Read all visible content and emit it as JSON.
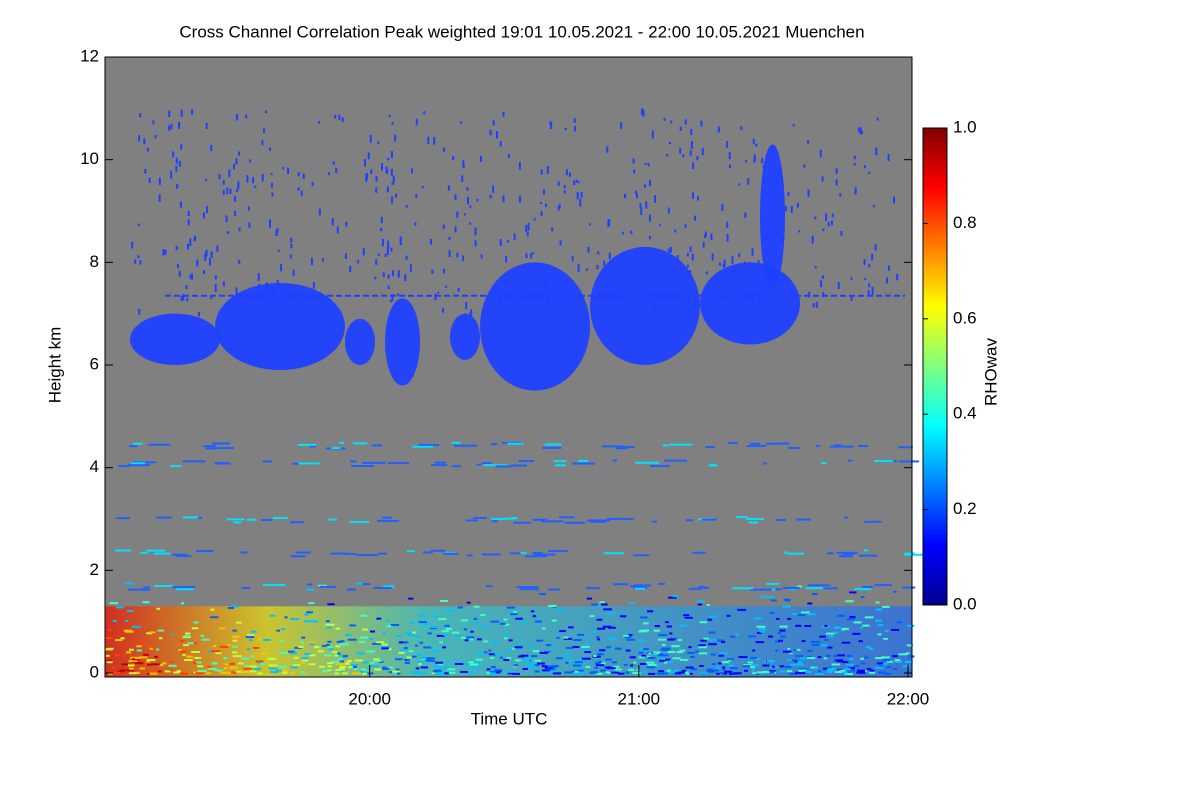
{
  "chart_data": {
    "type": "heatmap",
    "title": "Cross Channel Correlation Peak weighted   19:01 10.05.2021 - 22:00 10.05.2021 Muenchen",
    "x_label": "Time UTC",
    "y_label": "Height km",
    "xlim": [
      19.0167,
      22.0
    ],
    "xticks": [
      {
        "value": 20,
        "label": "20:00"
      },
      {
        "value": 21,
        "label": "21:00"
      },
      {
        "value": 22,
        "label": "22:00"
      }
    ],
    "ylim": [
      0,
      12
    ],
    "yticks": [
      0,
      2,
      4,
      6,
      8,
      10,
      12
    ],
    "colorbar": {
      "label": "RHOwav",
      "colormap": "jet",
      "lim": [
        0,
        1
      ],
      "ticks": [
        {
          "value": 0,
          "label": "0.0"
        },
        {
          "value": 0.2,
          "label": "0.2"
        },
        {
          "value": 0.4,
          "label": "0.4"
        },
        {
          "value": 0.6,
          "label": "0.6"
        },
        {
          "value": 0.8,
          "label": "0.8"
        },
        {
          "value": 1,
          "label": "1.0"
        }
      ]
    }
  }
}
